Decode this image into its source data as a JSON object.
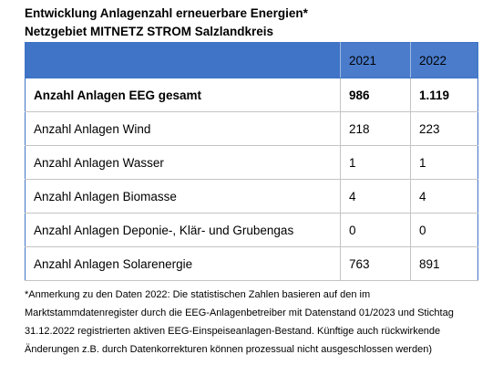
{
  "header": {
    "title": "Entwicklung Anlagenzahl erneuerbare Energien*",
    "subtitle": "Netzgebiet MITNETZ STROM Salzlandkreis"
  },
  "table": {
    "columns": [
      "",
      "2021",
      "2022"
    ],
    "rows": [
      [
        "Anzahl Anlagen EEG gesamt",
        "986",
        "1.119"
      ],
      [
        "Anzahl Anlagen Wind",
        "218",
        "223"
      ],
      [
        "Anzahl Anlagen Wasser",
        "1",
        "1"
      ],
      [
        "Anzahl Anlagen Biomasse",
        "4",
        "4"
      ],
      [
        "Anzahl Anlagen Deponie-, Klär- und Grubengas",
        "0",
        "0"
      ],
      [
        "Anzahl Anlagen Solarenergie",
        "763",
        "891"
      ]
    ]
  },
  "footnote": "*Anmerkung zu den Daten 2022: Die statistischen Zahlen basieren auf den im Marktstammdatenregister durch die EEG-Anlagenbetreiber mit Datenstand 01/2023 und Stichtag 31.12.2022 registrierten aktiven EEG-Einspeiseanlagen-Bestand. Künftige auch rückwirkende Änderungen z.B. durch Datenkorrekturen können prozessual nicht ausgeschlossen werden)"
}
